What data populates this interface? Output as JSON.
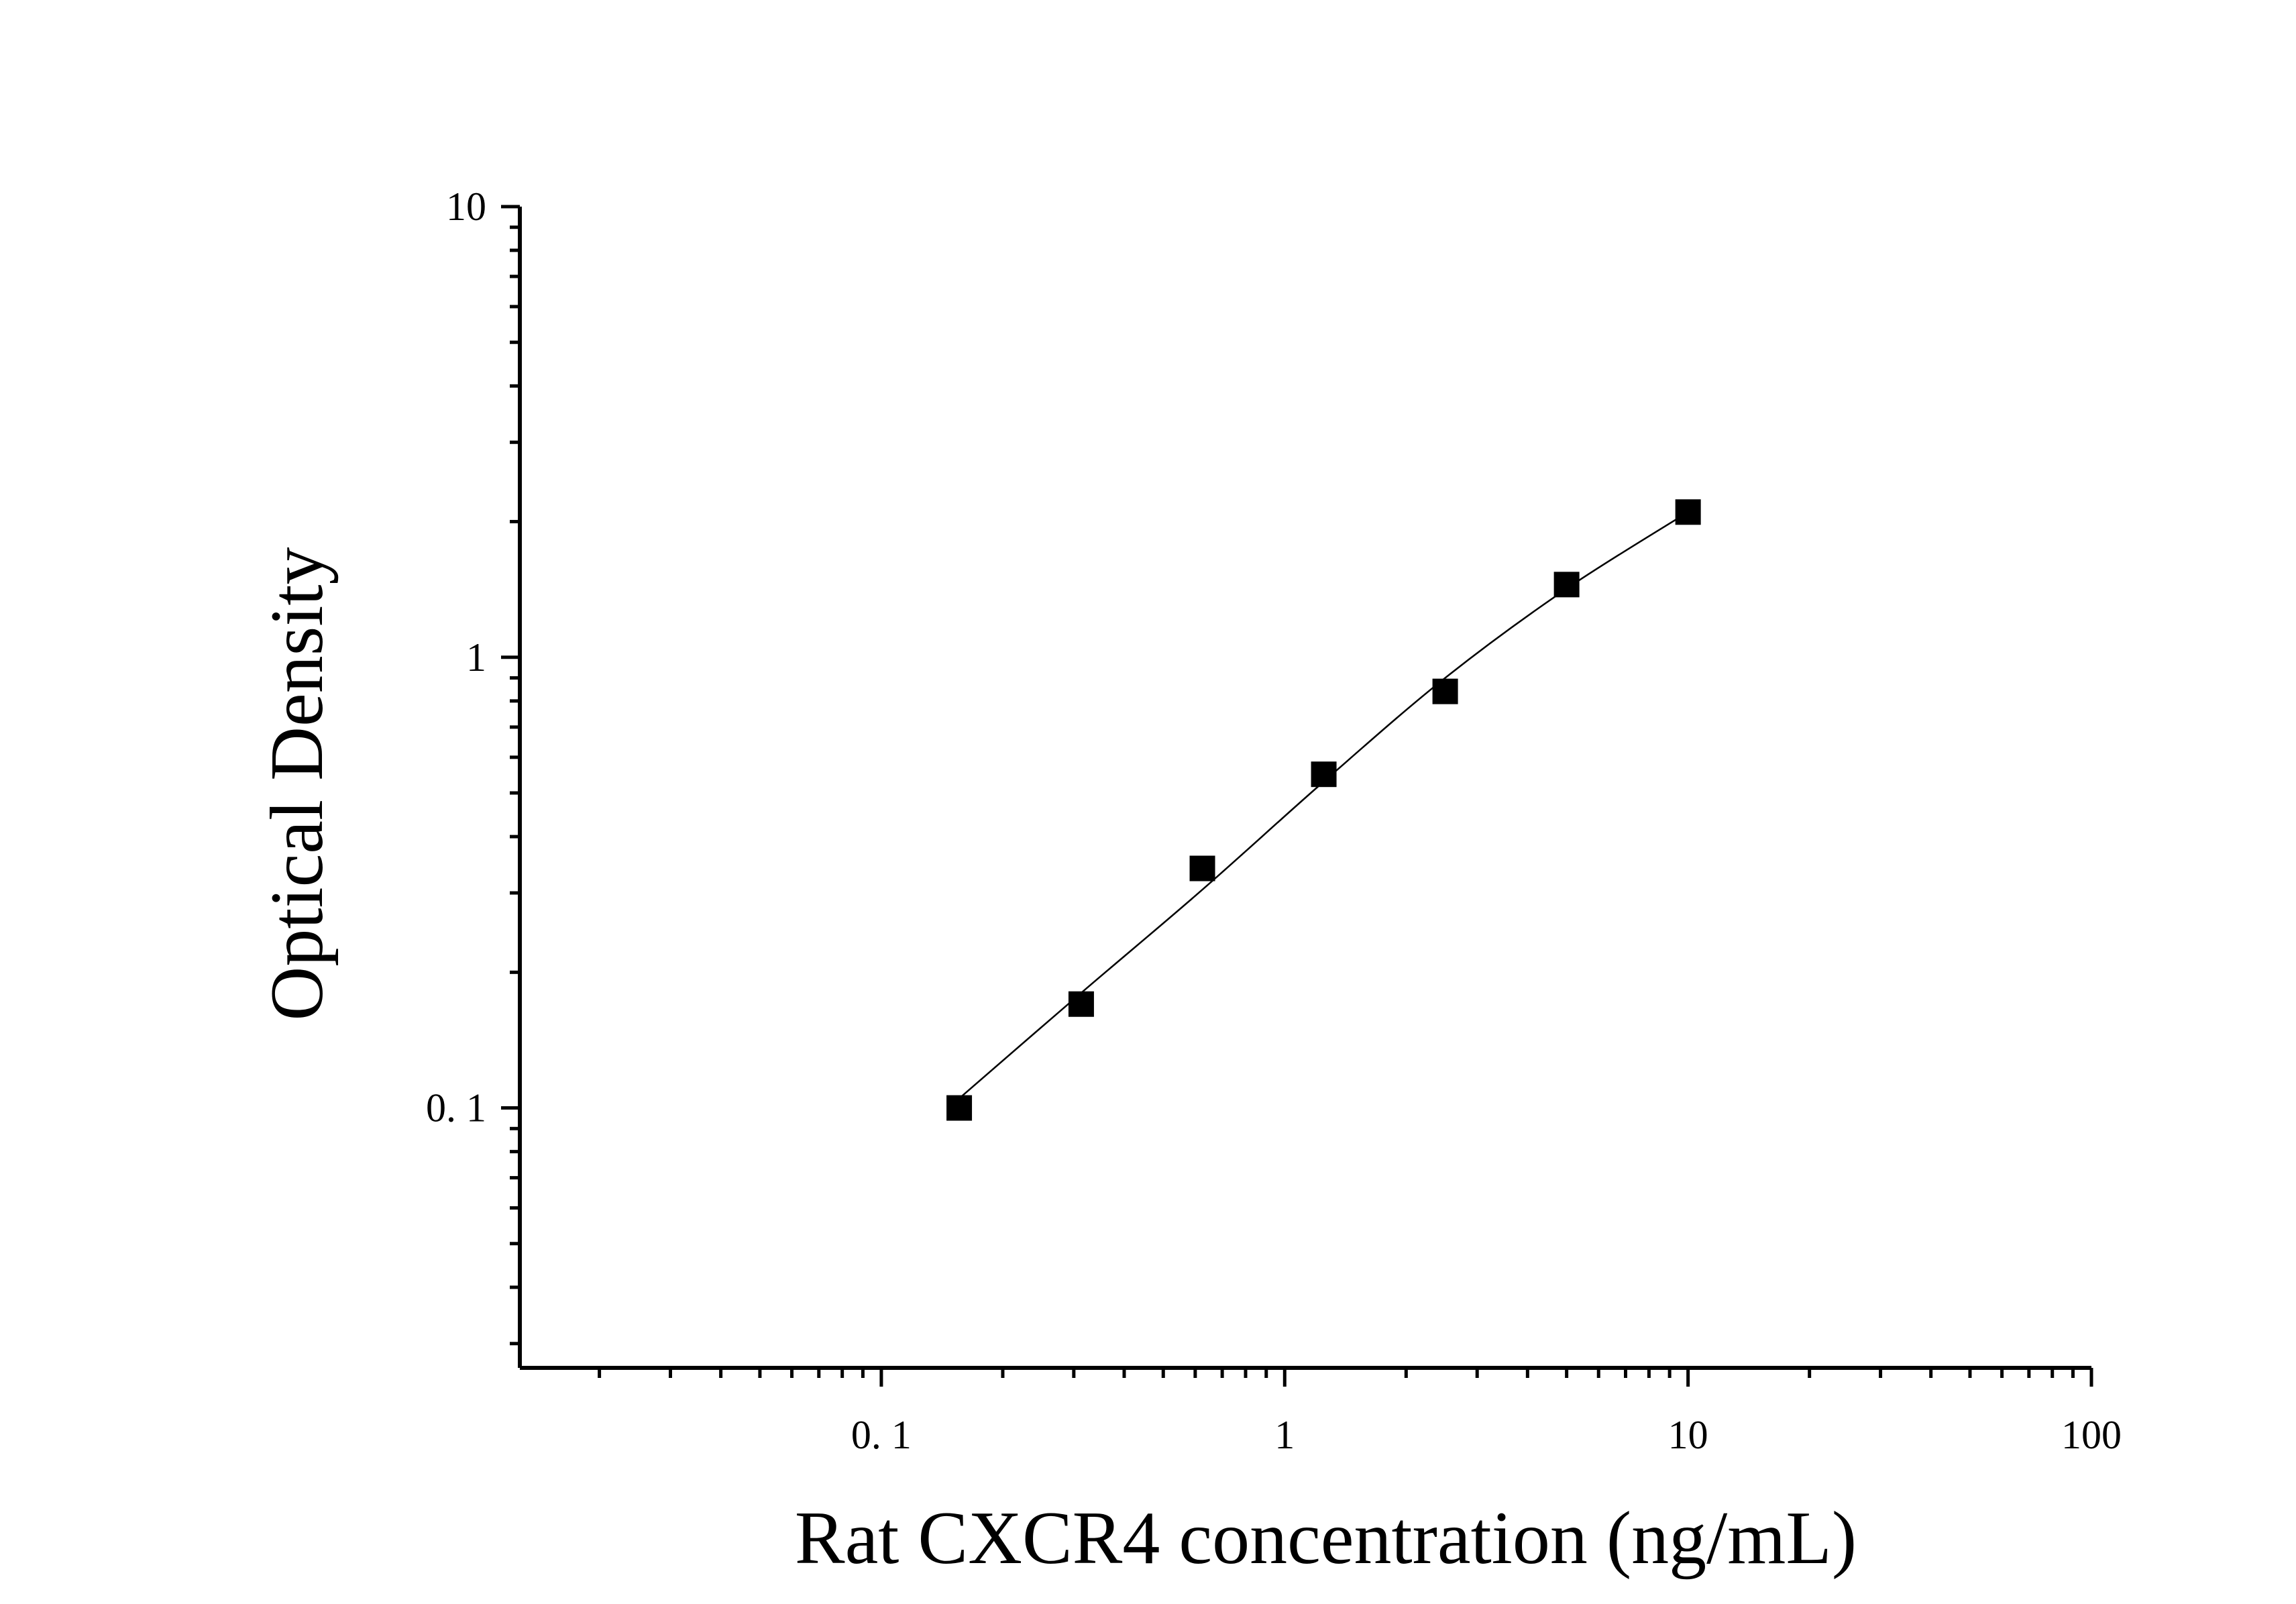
{
  "chart_data": {
    "type": "scatter",
    "xlabel": "Rat CXCR4 concentration (ng/mL)",
    "ylabel": "Optical Density",
    "x_scale": "log",
    "y_scale": "log",
    "xlim": [
      0.0127,
      100
    ],
    "ylim": [
      0.0265,
      10
    ],
    "grid": false,
    "x_ticks": [
      {
        "value": 0.1,
        "label": "0. 1"
      },
      {
        "value": 1,
        "label": "1"
      },
      {
        "value": 10,
        "label": "10"
      },
      {
        "value": 100,
        "label": "100"
      }
    ],
    "y_ticks": [
      {
        "value": 0.1,
        "label": "0. 1"
      },
      {
        "value": 1,
        "label": "1"
      },
      {
        "value": 10,
        "label": "10"
      }
    ],
    "series": [
      {
        "x": [
          0.156,
          0.313,
          0.625,
          1.25,
          2.5,
          5,
          10
        ],
        "y": [
          0.1,
          0.17,
          0.34,
          0.55,
          0.84,
          1.45,
          2.1
        ],
        "marker": "square",
        "color": "#000000"
      }
    ],
    "fit_curve": {
      "x": [
        0.156,
        0.313,
        0.625,
        1.25,
        2.5,
        5,
        10
      ],
      "y": [
        0.105,
        0.18,
        0.305,
        0.53,
        0.9,
        1.42,
        2.1
      ]
    }
  }
}
